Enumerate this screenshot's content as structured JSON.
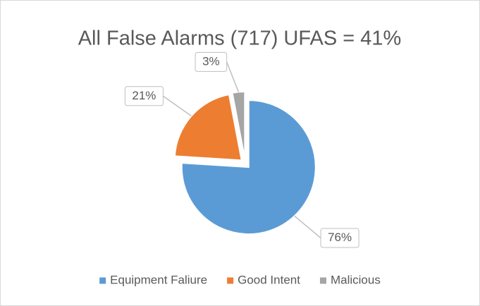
{
  "chart_data": {
    "type": "pie",
    "title": "All False Alarms (717) UFAS = 41%",
    "categories": [
      "Equipment Faliure",
      "Good Intent",
      "Malicious"
    ],
    "values": [
      76,
      21,
      3
    ],
    "value_labels": [
      "76%",
      "21%",
      "3%"
    ],
    "colors": [
      "#5b9bd5",
      "#ed7d31",
      "#a5a5a5"
    ],
    "legend": "bottom"
  }
}
